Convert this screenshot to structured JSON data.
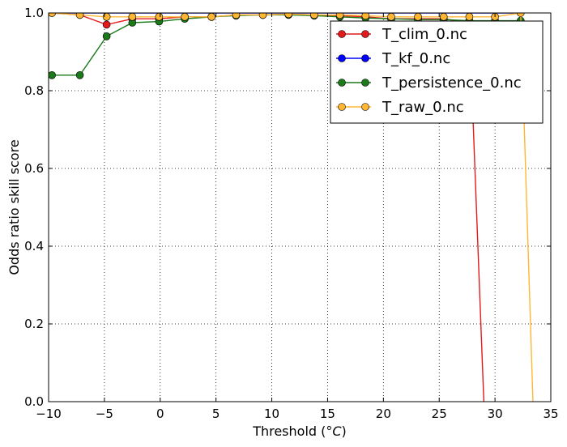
{
  "chart_data": {
    "type": "line",
    "xlabel_prefix": "Threshold (",
    "xlabel_unit": "°C",
    "xlabel_suffix": ")",
    "ylabel": "Odds ratio skill score",
    "xlim": [
      -10,
      35
    ],
    "ylim": [
      0.0,
      1.0
    ],
    "xticks": [
      -10,
      -5,
      0,
      5,
      10,
      15,
      20,
      25,
      30,
      35
    ],
    "yticks": [
      0.0,
      0.2,
      0.4,
      0.6,
      0.8,
      1.0
    ],
    "xtick_labels": [
      "−10",
      "−5",
      "0",
      "5",
      "10",
      "15",
      "20",
      "25",
      "30",
      "35"
    ],
    "ytick_labels": [
      "0.0",
      "0.2",
      "0.4",
      "0.6",
      "0.8",
      "1.0"
    ],
    "grid": true,
    "legend_position": "top-right",
    "series": [
      {
        "name": "T_clim_0.nc",
        "color": "#e31a1c",
        "x": [
          -9.7,
          -7.2,
          -4.8,
          -2.5,
          -0.1,
          2.2,
          4.6,
          6.8,
          9.2,
          11.5,
          13.8,
          16.1,
          18.4,
          20.7,
          23.1,
          25.4,
          27.7,
          29.0
        ],
        "y": [
          1.0,
          0.995,
          0.97,
          0.985,
          0.985,
          0.99,
          0.99,
          0.995,
          0.995,
          0.997,
          0.995,
          0.993,
          0.99,
          0.985,
          0.985,
          0.985,
          0.975,
          0.0
        ],
        "markers": [
          true,
          true,
          true,
          true,
          true,
          true,
          true,
          true,
          true,
          true,
          true,
          true,
          true,
          true,
          true,
          true,
          true,
          false
        ]
      },
      {
        "name": "T_kf_0.nc",
        "color": "#0000ff",
        "x": [
          -9.7,
          -7.2,
          -4.8,
          -2.5,
          -0.1,
          2.2,
          4.6,
          6.8,
          9.2,
          11.5,
          13.8,
          16.1,
          18.4,
          20.7,
          23.1,
          25.4,
          27.7,
          30.0,
          32.3
        ],
        "y": [
          1.0,
          1.0,
          1.0,
          1.0,
          1.0,
          1.0,
          1.0,
          1.0,
          1.0,
          1.0,
          1.0,
          1.0,
          1.0,
          1.0,
          1.0,
          1.0,
          1.0,
          1.0,
          1.0
        ],
        "markers": [
          false,
          false,
          false,
          false,
          false,
          false,
          false,
          false,
          false,
          false,
          false,
          false,
          false,
          false,
          false,
          false,
          false,
          false,
          false
        ]
      },
      {
        "name": "T_persistence_0.nc",
        "color": "#1a7a1a",
        "x": [
          -9.7,
          -7.2,
          -4.8,
          -2.5,
          -0.1,
          2.2,
          4.6,
          6.8,
          9.2,
          11.5,
          13.8,
          16.1,
          18.4,
          20.7,
          23.1,
          25.4,
          27.7,
          30.0,
          32.3
        ],
        "y": [
          0.84,
          0.84,
          0.94,
          0.975,
          0.978,
          0.985,
          0.99,
          0.993,
          0.995,
          0.995,
          0.993,
          0.99,
          0.987,
          0.985,
          0.983,
          0.983,
          0.98,
          0.98,
          0.98
        ],
        "markers": [
          true,
          true,
          true,
          true,
          true,
          true,
          true,
          true,
          true,
          true,
          true,
          true,
          true,
          true,
          true,
          true,
          true,
          true,
          true
        ]
      },
      {
        "name": "T_raw_0.nc",
        "color": "#ffb733",
        "x": [
          -9.7,
          -7.2,
          -4.8,
          -2.5,
          -0.1,
          2.2,
          4.6,
          6.8,
          9.2,
          11.5,
          13.8,
          16.1,
          18.4,
          20.7,
          23.1,
          25.4,
          27.7,
          30.0,
          32.3,
          33.4
        ],
        "y": [
          1.0,
          0.995,
          0.99,
          0.99,
          0.99,
          0.99,
          0.99,
          0.995,
          0.995,
          0.997,
          0.995,
          0.995,
          0.993,
          0.99,
          0.99,
          0.99,
          0.99,
          0.99,
          1.0,
          0.0
        ],
        "markers": [
          true,
          true,
          true,
          true,
          true,
          true,
          true,
          true,
          true,
          true,
          true,
          true,
          true,
          true,
          true,
          true,
          true,
          true,
          true,
          false
        ]
      }
    ]
  }
}
